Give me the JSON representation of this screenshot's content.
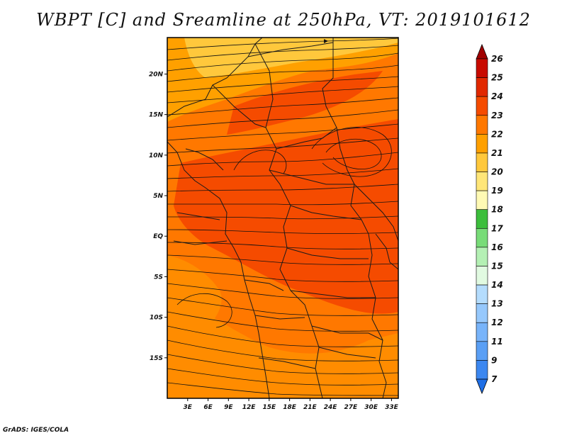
{
  "title": "WBPT [C] and Sreamline at 250hPa, VT: 2019101612",
  "credit": "GrADS: IGES/COLA",
  "map": {
    "lon_range": [
      0,
      34
    ],
    "lat_range": [
      -20,
      24.5
    ],
    "lat_ticks": [
      {
        "value": 20,
        "label": "20N"
      },
      {
        "value": 15,
        "label": "15N"
      },
      {
        "value": 10,
        "label": "10N"
      },
      {
        "value": 5,
        "label": "5N"
      },
      {
        "value": 0,
        "label": "EQ"
      },
      {
        "value": -5,
        "label": "5S"
      },
      {
        "value": -10,
        "label": "10S"
      },
      {
        "value": -15,
        "label": "15S"
      }
    ],
    "lon_ticks": [
      {
        "value": 3,
        "label": "3E"
      },
      {
        "value": 6,
        "label": "6E"
      },
      {
        "value": 9,
        "label": "9E"
      },
      {
        "value": 12,
        "label": "12E"
      },
      {
        "value": 15,
        "label": "15E"
      },
      {
        "value": 18,
        "label": "18E"
      },
      {
        "value": 21,
        "label": "21E"
      },
      {
        "value": 24,
        "label": "24E"
      },
      {
        "value": 27,
        "label": "27E"
      },
      {
        "value": 30,
        "label": "30E"
      },
      {
        "value": 33,
        "label": "33E"
      }
    ]
  },
  "colorbar": {
    "levels": [
      "7",
      "9",
      "11",
      "12",
      "13",
      "14",
      "15",
      "16",
      "17",
      "18",
      "19",
      "20",
      "21",
      "22",
      "23",
      "24",
      "25",
      "26"
    ],
    "colors": [
      "#1e6ee6",
      "#3c87f0",
      "#5a9ff5",
      "#78b4fa",
      "#96c8fc",
      "#b4dcfd",
      "#e1fae1",
      "#b4f0b4",
      "#78dc78",
      "#3cbe3c",
      "#fffab4",
      "#ffe678",
      "#ffc83c",
      "#ffa000",
      "#ff7800",
      "#f54b00",
      "#e12800",
      "#c80a00",
      "#a00000"
    ]
  }
}
